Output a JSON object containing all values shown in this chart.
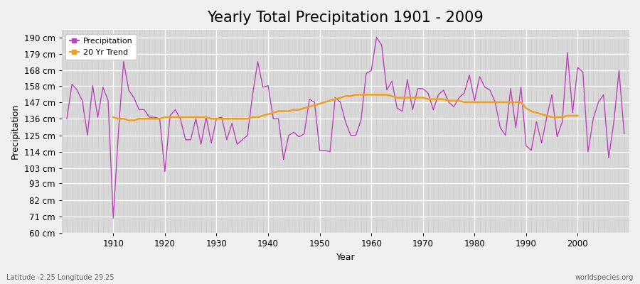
{
  "title": "Yearly Total Precipitation 1901 - 2009",
  "xlabel": "Year",
  "ylabel": "Precipitation",
  "bottom_left_label": "Latitude -2.25 Longitude 29.25",
  "bottom_right_label": "worldspecies.org",
  "years": [
    1901,
    1902,
    1903,
    1904,
    1905,
    1906,
    1907,
    1908,
    1909,
    1910,
    1911,
    1912,
    1913,
    1914,
    1915,
    1916,
    1917,
    1918,
    1919,
    1920,
    1921,
    1922,
    1923,
    1924,
    1925,
    1926,
    1927,
    1928,
    1929,
    1930,
    1931,
    1932,
    1933,
    1934,
    1935,
    1936,
    1937,
    1938,
    1939,
    1940,
    1941,
    1942,
    1943,
    1944,
    1945,
    1946,
    1947,
    1948,
    1949,
    1950,
    1951,
    1952,
    1953,
    1954,
    1955,
    1956,
    1957,
    1958,
    1959,
    1960,
    1961,
    1962,
    1963,
    1964,
    1965,
    1966,
    1967,
    1968,
    1969,
    1970,
    1971,
    1972,
    1973,
    1974,
    1975,
    1976,
    1977,
    1978,
    1979,
    1980,
    1981,
    1982,
    1983,
    1984,
    1985,
    1986,
    1987,
    1988,
    1989,
    1990,
    1991,
    1992,
    1993,
    1994,
    1995,
    1996,
    1997,
    1998,
    1999,
    2000,
    2001,
    2002,
    2003,
    2004,
    2005,
    2006,
    2007,
    2008,
    2009
  ],
  "precipitation": [
    136,
    159,
    155,
    148,
    125,
    158,
    137,
    157,
    148,
    70,
    127,
    174,
    155,
    150,
    142,
    142,
    137,
    137,
    136,
    101,
    138,
    142,
    136,
    122,
    122,
    136,
    119,
    137,
    120,
    136,
    137,
    122,
    133,
    119,
    122,
    125,
    152,
    174,
    157,
    158,
    136,
    136,
    109,
    125,
    127,
    124,
    126,
    149,
    147,
    115,
    115,
    114,
    150,
    147,
    134,
    125,
    125,
    135,
    166,
    168,
    190,
    185,
    155,
    161,
    143,
    141,
    162,
    142,
    156,
    156,
    153,
    142,
    152,
    155,
    147,
    144,
    150,
    153,
    165,
    148,
    164,
    157,
    155,
    147,
    130,
    125,
    156,
    130,
    157,
    118,
    115,
    134,
    120,
    137,
    152,
    124,
    134,
    180,
    140,
    170,
    167,
    114,
    136,
    147,
    152,
    110,
    134,
    168,
    126
  ],
  "trend_years": [
    1910,
    1911,
    1912,
    1913,
    1914,
    1915,
    1916,
    1917,
    1918,
    1919,
    1920,
    1921,
    1922,
    1923,
    1924,
    1925,
    1926,
    1927,
    1928,
    1929,
    1930,
    1931,
    1932,
    1933,
    1934,
    1935,
    1936,
    1937,
    1938,
    1939,
    1940,
    1941,
    1942,
    1943,
    1944,
    1945,
    1946,
    1947,
    1948,
    1949,
    1950,
    1951,
    1952,
    1953,
    1954,
    1955,
    1956,
    1957,
    1958,
    1959,
    1960,
    1961,
    1962,
    1963,
    1964,
    1965,
    1966,
    1967,
    1968,
    1969,
    1970,
    1971,
    1972,
    1973,
    1974,
    1975,
    1976,
    1977,
    1978,
    1979,
    1980,
    1981,
    1982,
    1983,
    1984,
    1985,
    1986,
    1987,
    1988,
    1989,
    1990,
    1991,
    1992,
    1993,
    1994,
    1995,
    1996,
    1997,
    1998,
    1999,
    2000
  ],
  "trend_values": [
    137,
    136,
    136,
    135,
    135,
    136,
    136,
    136,
    136,
    136,
    137,
    137,
    137,
    137,
    137,
    137,
    137,
    137,
    137,
    136,
    136,
    136,
    136,
    136,
    136,
    136,
    136,
    137,
    137,
    138,
    139,
    140,
    141,
    141,
    141,
    142,
    142,
    143,
    144,
    145,
    146,
    147,
    148,
    149,
    150,
    151,
    151,
    152,
    152,
    152,
    152,
    152,
    152,
    152,
    151,
    150,
    150,
    150,
    150,
    150,
    150,
    149,
    149,
    149,
    149,
    148,
    148,
    148,
    147,
    147,
    147,
    147,
    147,
    147,
    147,
    147,
    147,
    147,
    147,
    147,
    143,
    141,
    140,
    139,
    138,
    137,
    137,
    137,
    138,
    138,
    138
  ],
  "ylim": [
    60,
    195
  ],
  "yticks": [
    60,
    71,
    82,
    93,
    103,
    114,
    125,
    136,
    147,
    158,
    168,
    179,
    190
  ],
  "ytick_labels": [
    "60 cm",
    "71 cm",
    "82 cm",
    "93 cm",
    "103 cm",
    "114 cm",
    "125 cm",
    "136 cm",
    "147 cm",
    "158 cm",
    "168 cm",
    "179 cm",
    "190 cm"
  ],
  "xlim": [
    1900,
    2010
  ],
  "xticks": [
    1910,
    1920,
    1930,
    1940,
    1950,
    1960,
    1970,
    1980,
    1990,
    2000
  ],
  "precip_color": "#bb44bb",
  "trend_color": "#f0a020",
  "fig_bg_color": "#f0f0f0",
  "plot_bg_color": "#d8d8d8",
  "grid_major_color": "#ffffff",
  "grid_minor_color": "#cccccc",
  "title_fontsize": 15,
  "axis_label_fontsize": 9,
  "tick_fontsize": 8.5,
  "legend_fontsize": 8
}
